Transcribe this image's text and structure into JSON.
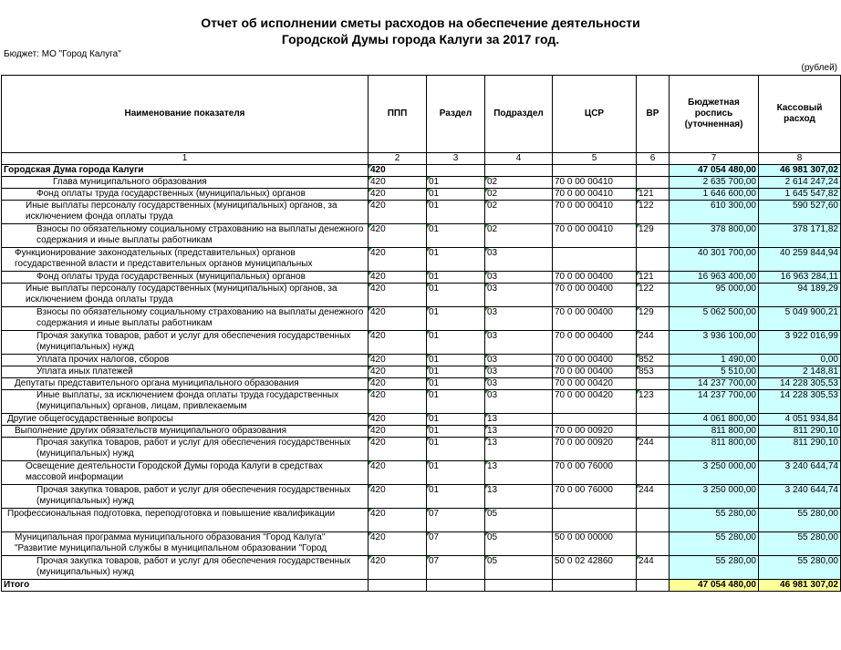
{
  "header": {
    "title_line1": "Отчет об исполнении сметы расходов на обеспечение деятельности",
    "title_line2": "Городской Думы города Калуги за  2017 год.",
    "budget": "Бюджет: МО \"Город Калуга\"",
    "units": "(рублей)"
  },
  "columns": {
    "name": "Наименование показателя",
    "ppp": "ППП",
    "razdel": "Раздел",
    "podrazdel": "Подраздел",
    "csr": "ЦСР",
    "vr": "ВР",
    "budget_l1": "Бюджетная",
    "budget_l2": "роспись",
    "budget_l3": "(уточненная)",
    "cash_l1": "Кассовый",
    "cash_l2": "расход",
    "n1": "1",
    "n2": "2",
    "n3": "3",
    "n4": "4",
    "n5": "5",
    "n6": "6",
    "n7": "7",
    "n8": "8"
  },
  "rows": [
    {
      "name": "Городская Дума города Калуги",
      "ppp": "420",
      "razdel": "",
      "podrazdel": "",
      "csr": "",
      "vr": "",
      "budget": "47 054 480,00",
      "cash": "46 981 307,02"
    },
    {
      "name": "Глава муниципального образования",
      "ppp": "420",
      "razdel": "01",
      "podrazdel": "02",
      "csr": "70 0 00 00410",
      "vr": "",
      "budget": "2 635 700,00",
      "cash": "2 614 247,24"
    },
    {
      "name": "Фонд оплаты труда государственных (муниципальных) органов",
      "ppp": "420",
      "razdel": "01",
      "podrazdel": "02",
      "csr": "70 0 00 00410",
      "vr": "121",
      "budget": "1 646 600,00",
      "cash": "1 645 547,82"
    },
    {
      "name": "Иные выплаты персоналу государственных (муниципальных) органов, за исключением фонда оплаты труда",
      "ppp": "420",
      "razdel": "01",
      "podrazdel": "02",
      "csr": "70 0 00 00410",
      "vr": "122",
      "budget": "610 300,00",
      "cash": "590 527,60"
    },
    {
      "name": "Взносы по обязательному социальному страхованию на выплаты денежного содержания и иные выплаты работникам",
      "ppp": "420",
      "razdel": "01",
      "podrazdel": "02",
      "csr": "70 0 00 00410",
      "vr": "129",
      "budget": "378 800,00",
      "cash": "378 171,82"
    },
    {
      "name": "Функционирование законодательных (представительных) органов государственной власти и представительных органов муниципальных",
      "ppp": "420",
      "razdel": "01",
      "podrazdel": "03",
      "csr": "",
      "vr": "",
      "budget": "40 301 700,00",
      "cash": "40 259 844,94"
    },
    {
      "name": "Фонд оплаты труда государственных (муниципальных) органов",
      "ppp": "420",
      "razdel": "01",
      "podrazdel": "03",
      "csr": "70 0 00 00400",
      "vr": "121",
      "budget": "16 963 400,00",
      "cash": "16 963 284,11"
    },
    {
      "name": "Иные выплаты персоналу государственных (муниципальных) органов, за исключением фонда оплаты труда",
      "ppp": "420",
      "razdel": "01",
      "podrazdel": "03",
      "csr": "70 0 00 00400",
      "vr": "122",
      "budget": "95 000,00",
      "cash": "94 189,29"
    },
    {
      "name": "Взносы по обязательному социальному страхованию на выплаты денежного содержания и иные выплаты работникам",
      "ppp": "420",
      "razdel": "01",
      "podrazdel": "03",
      "csr": "70 0 00 00400",
      "vr": "129",
      "budget": "5 062 500,00",
      "cash": "5 049 900,21"
    },
    {
      "name": "Прочая закупка товаров, работ и услуг для обеспечения государственных (муниципальных) нужд",
      "ppp": "420",
      "razdel": "01",
      "podrazdel": "03",
      "csr": "70 0 00 00400",
      "vr": "244",
      "budget": "3 936 100,00",
      "cash": "3 922 016,99"
    },
    {
      "name": "Уплата прочих налогов, сборов",
      "ppp": "420",
      "razdel": "01",
      "podrazdel": "03",
      "csr": "70 0 00 00400",
      "vr": "852",
      "budget": "1 490,00",
      "cash": "0,00"
    },
    {
      "name": "Уплата иных платежей",
      "ppp": "420",
      "razdel": "01",
      "podrazdel": "03",
      "csr": "70 0 00 00400",
      "vr": "853",
      "budget": "5 510,00",
      "cash": "2 148,81"
    },
    {
      "name": "Депутаты представительного органа муниципального образования",
      "ppp": "420",
      "razdel": "01",
      "podrazdel": "03",
      "csr": "70 0 00 00420",
      "vr": "",
      "budget": "14 237 700,00",
      "cash": "14 228 305,53"
    },
    {
      "name": "Иные выплаты, за исключением фонда оплаты труда государственных (муниципальных) органов, лицам, привлекаемым",
      "ppp": "420",
      "razdel": "01",
      "podrazdel": "03",
      "csr": "70 0 00 00420",
      "vr": "123",
      "budget": "14 237 700,00",
      "cash": "14 228 305,53"
    },
    {
      "name": "Другие общегосударственные вопросы",
      "ppp": "420",
      "razdel": "01",
      "podrazdel": "13",
      "csr": "",
      "vr": "",
      "budget": "4 061 800,00",
      "cash": "4 051 934,84"
    },
    {
      "name": "Выполнение других обязательств муниципального образования",
      "ppp": "420",
      "razdel": "01",
      "podrazdel": "13",
      "csr": "70 0 00 00920",
      "vr": "",
      "budget": "811 800,00",
      "cash": "811 290,10"
    },
    {
      "name": "Прочая закупка товаров, работ и услуг для обеспечения государственных (муниципальных) нужд",
      "ppp": "420",
      "razdel": "01",
      "podrazdel": "13",
      "csr": "70 0 00 00920",
      "vr": "244",
      "budget": "811 800,00",
      "cash": "811 290,10"
    },
    {
      "name": "Освещение деятельности Городской Думы города Калуги в средствах массовой информации",
      "ppp": "420",
      "razdel": "01",
      "podrazdel": "13",
      "csr": "70 0 00 76000",
      "vr": "",
      "budget": "3 250 000,00",
      "cash": "3 240 644,74"
    },
    {
      "name": "Прочая закупка товаров, работ и услуг для обеспечения государственных (муниципальных) нужд",
      "ppp": "420",
      "razdel": "01",
      "podrazdel": "13",
      "csr": "70 0 00 76000",
      "vr": "244",
      "budget": "3 250 000,00",
      "cash": "3 240 644,74"
    },
    {
      "name": "Профессиональная подготовка, переподготовка и повышение квалификации",
      "ppp": "420",
      "razdel": "07",
      "podrazdel": "05",
      "csr": "",
      "vr": "",
      "budget": "55 280,00",
      "cash": "55 280,00"
    },
    {
      "name": "Муниципальная программа муниципального образования \"Город Калуга\" \"Развитие муниципальной службы в муниципальном образовании \"Город",
      "ppp": "420",
      "razdel": "07",
      "podrazdel": "05",
      "csr": "50 0 00 00000",
      "vr": "",
      "budget": "55 280,00",
      "cash": "55 280,00"
    },
    {
      "name": "Прочая закупка товаров, работ и услуг для обеспечения государственных (муниципальных) нужд",
      "ppp": "420",
      "razdel": "07",
      "podrazdel": "05",
      "csr": "50 0 02 42860",
      "vr": "244",
      "budget": "55 280,00",
      "cash": "55 280,00"
    }
  ],
  "total": {
    "name": "Итого",
    "budget": "47 054 480,00",
    "cash": "46 981 307,02"
  }
}
